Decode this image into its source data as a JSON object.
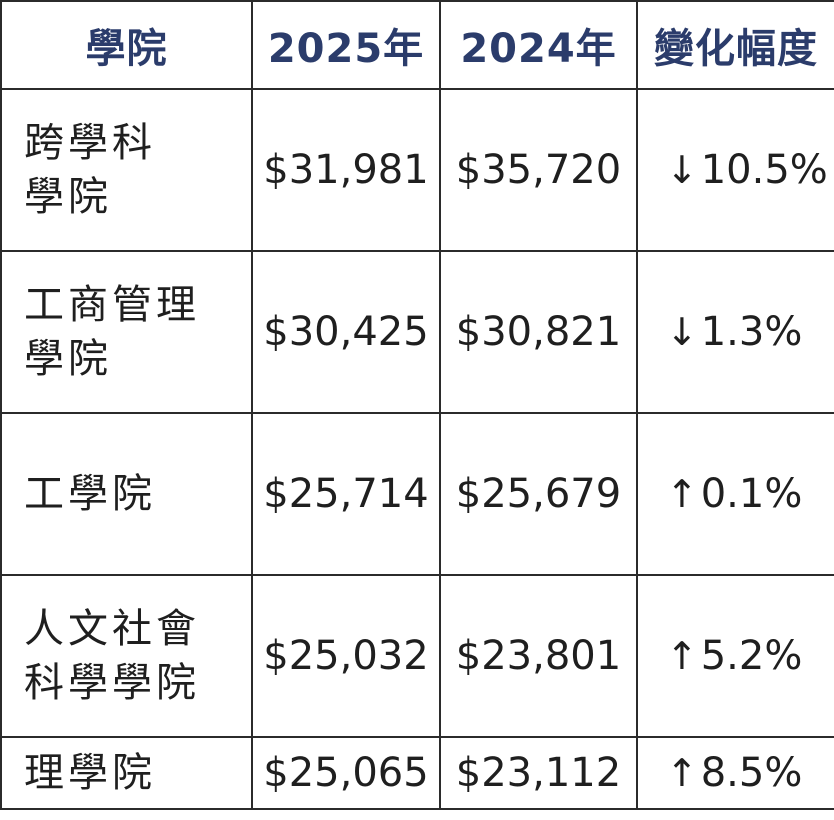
{
  "table": {
    "headers": [
      "學院",
      "2025年",
      "2024年",
      "變化幅度"
    ],
    "rows": [
      {
        "name_lines": [
          "跨學科",
          "學院"
        ],
        "y2025": "$31,981",
        "y2024": "$35,720",
        "direction": "down",
        "arrow": "↓",
        "change": "10.5%"
      },
      {
        "name_lines": [
          "工商管理",
          "學院"
        ],
        "y2025": "$30,425",
        "y2024": "$30,821",
        "direction": "down",
        "arrow": "↓",
        "change": "1.3%"
      },
      {
        "name_lines": [
          "工學院"
        ],
        "y2025": "$25,714",
        "y2024": "$25,679",
        "direction": "up",
        "arrow": "↑",
        "change": "0.1%"
      },
      {
        "name_lines": [
          "人文社會",
          "科學學院"
        ],
        "y2025": "$25,032",
        "y2024": "$23,801",
        "direction": "up",
        "arrow": "↑",
        "change": "5.2%"
      },
      {
        "name_lines": [
          "理學院"
        ],
        "y2025": "$25,065",
        "y2024": "$23,112",
        "direction": "up",
        "arrow": "↑",
        "change": "8.5%"
      }
    ]
  },
  "colors": {
    "header_text": "#2b3c6b",
    "body_text": "#1f1f1f",
    "border": "#2b2b2b"
  }
}
